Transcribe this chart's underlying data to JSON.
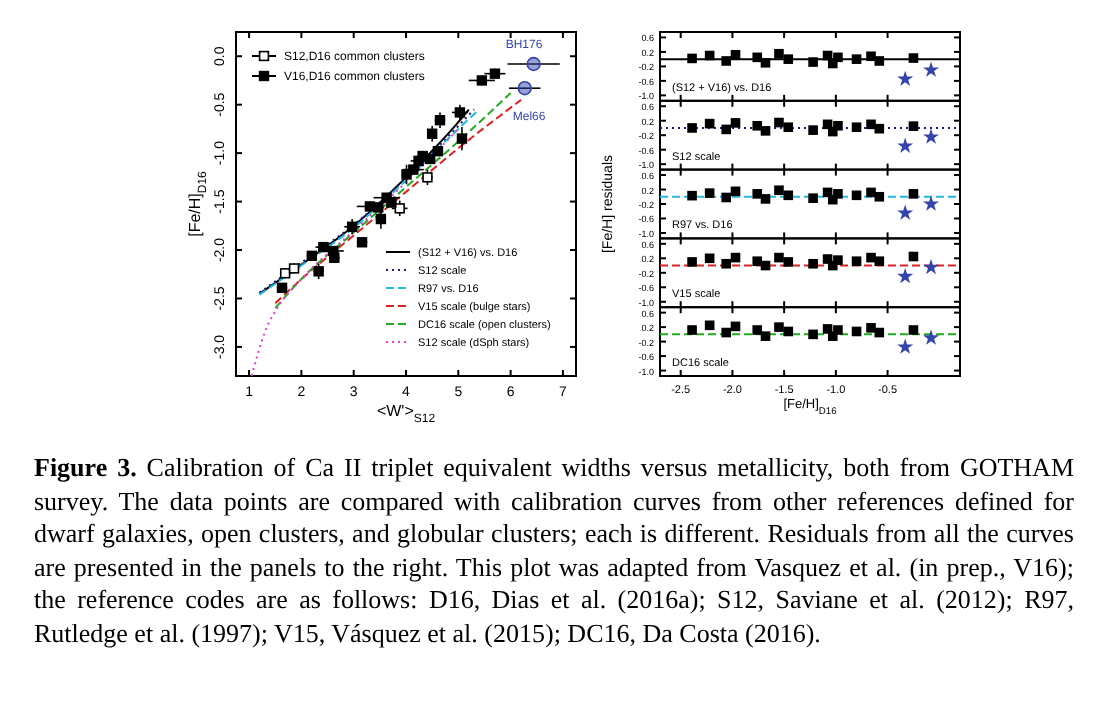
{
  "chart_data": [
    {
      "type": "scatter",
      "xlabel": "<W'>$_{S12}$",
      "ylabel": "[Fe/H]$_{D16}$",
      "xlim": [
        0.75,
        7.25
      ],
      "ylim": [
        -3.3,
        0.25
      ],
      "xticks": [
        1,
        2,
        3,
        4,
        5,
        6,
        7
      ],
      "yticks": [
        {
          "value": 0,
          "label": "0.0"
        },
        -0.5,
        {
          "value": -1,
          "label": "-1.0"
        },
        -1.5,
        {
          "value": -2,
          "label": "-2.0"
        },
        -2.5,
        {
          "value": -3,
          "label": "-3.0"
        }
      ],
      "legend": "left",
      "annotations": [
        {
          "text": "BH176",
          "x": 6.44,
          "y": -0.08
        },
        {
          "text": "Mel66",
          "x": 6.27,
          "y": -0.33
        },
        "Figure 3. Calibration of Ca II triplet equivalent widths versus metallicity, both from GOTHAM survey. The data points are compared with calibration curves from other references defined for dwarf galaxies, open clusters, and globular clusters; each is different.  Residuals from all the curves are presented in the panels to the right.  This plot was adapted from Vasquez et al. (in prep., V16); the reference codes are as follows: D16, Dias et al. (2016a); S12, Saviane et al. (2012); R97, Rutledge et al. (1997); V15, Vásquez et al. (2015); DC16, Da Costa (2016)."
      ],
      "series": [
        {
          "name": "S12,D16 common clusters",
          "type": "scatter",
          "color": "#ffffff",
          "marker": "square",
          "x": [
            1.69,
            1.86,
            3.88,
            4.41
          ],
          "values": [
            -2.24,
            -2.19,
            -1.57,
            -1.25
          ],
          "errors": [
            0.05,
            0.05,
            0.08,
            0.08
          ],
          "xerrors": [
            0.1,
            0.1,
            0.15,
            0.1
          ]
        },
        {
          "name": "V16,D16 common clusters",
          "type": "scatter",
          "color": "#000000",
          "marker": "square",
          "x": [
            1.63,
            2.2,
            2.42,
            2.33,
            2.61,
            2.63,
            2.97,
            3.16,
            3.31,
            3.47,
            3.52,
            3.63,
            3.72,
            4.01,
            4.14,
            4.24,
            4.32,
            4.46,
            4.61,
            4.5,
            4.65,
            5.03,
            5.07,
            5.45,
            5.7
          ],
          "values": [
            -2.39,
            -2.06,
            -1.97,
            -2.22,
            -2.01,
            -2.08,
            -1.76,
            -1.92,
            -1.55,
            -1.56,
            -1.68,
            -1.46,
            -1.51,
            -1.22,
            -1.17,
            -1.08,
            -1.03,
            -1.06,
            -0.98,
            -0.8,
            -0.66,
            -0.58,
            -0.85,
            -0.25,
            -0.18
          ],
          "errors": [
            0.05,
            0.05,
            0.05,
            0.08,
            0.05,
            0.05,
            0.08,
            0.05,
            0.05,
            0.05,
            0.1,
            0.05,
            0.05,
            0.1,
            0.05,
            0.1,
            0.05,
            0.05,
            0.05,
            0.08,
            0.08,
            0.08,
            0.12,
            0.05,
            0.05
          ],
          "xerrors": [
            0.1,
            0.1,
            0.15,
            0.1,
            0.2,
            0.1,
            0.15,
            0.1,
            0.25,
            0.1,
            0.1,
            0.25,
            0.1,
            0.1,
            0.2,
            0.15,
            0.1,
            0.1,
            0.1,
            0.05,
            0.1,
            0.15,
            0.05,
            0.25,
            0.2
          ]
        },
        {
          "type": "scatter",
          "color": "#3344aa",
          "marker": "circle",
          "x": [
            6.44,
            6.27
          ],
          "values": [
            -0.08,
            -0.33
          ],
          "xerrors": [
            0.5,
            0.3
          ]
        },
        {
          "name": "(S12 + V16) vs. D16",
          "type": "line",
          "color": "#000000",
          "line_style": "solid",
          "x": [
            1.2,
            2,
            3,
            4,
            5,
            5.2
          ],
          "values": [
            -2.45,
            -2.15,
            -1.75,
            -1.25,
            -0.68,
            -0.55
          ]
        },
        {
          "name": "S12 scale",
          "type": "line",
          "color": "#1a1a80",
          "line_style": "dotted",
          "x": [
            1.2,
            2,
            3,
            4,
            5,
            5.3
          ],
          "values": [
            -2.44,
            -2.13,
            -1.74,
            -1.26,
            -0.72,
            -0.55
          ]
        },
        {
          "name": "R97 vs. D16",
          "type": "line",
          "color": "#22bbdd",
          "line_style": "dashed",
          "x": [
            1.2,
            2,
            3,
            4,
            5,
            5.4
          ],
          "values": [
            -2.46,
            -2.16,
            -1.77,
            -1.28,
            -0.75,
            -0.55
          ]
        },
        {
          "name": "V15 scale (bulge stars)",
          "type": "line",
          "color": "#dd2222",
          "line_style": "dashed",
          "x": [
            1.5,
            2,
            3,
            4,
            5,
            6.2
          ],
          "values": [
            -2.55,
            -2.3,
            -1.85,
            -1.4,
            -0.95,
            -0.45
          ]
        },
        {
          "name": "DC16 scale (open clusters)",
          "type": "line",
          "color": "#22aa22",
          "line_style": "dashed",
          "x": [
            1.5,
            2,
            3,
            4,
            5,
            6
          ],
          "values": [
            -2.6,
            -2.3,
            -1.82,
            -1.35,
            -0.88,
            -0.38
          ]
        },
        {
          "name": "S12 scale (dSph stars)",
          "type": "line",
          "color": "#dd44cc",
          "line_style": "dotted",
          "x": [
            1.05,
            1.3,
            1.6,
            2,
            3,
            4,
            5
          ],
          "values": [
            -3.3,
            -2.85,
            -2.55,
            -2.3,
            -1.8,
            -1.3,
            -0.75
          ]
        }
      ]
    },
    {
      "type": "scatter",
      "xlim": [
        -2.7,
        0.2
      ],
      "ylim": [
        -1.15,
        0.75
      ],
      "yticks": [
        0.6,
        0.2,
        -0.2,
        -0.6,
        {
          "value": -1,
          "label": "-1.0"
        }
      ],
      "tick_labels": "y",
      "annotations": [
        "(S12 + V16) vs. D16"
      ],
      "ref_lines": [
        {
          "axis": "y",
          "value": 0,
          "color": "#000000",
          "line_style": "solid"
        }
      ],
      "series": [
        {
          "type": "scatter",
          "color": "#000000",
          "marker": "square",
          "x": [
            -2.39,
            -2.22,
            -2.06,
            -1.97,
            -1.76,
            -1.68,
            -1.55,
            -1.46,
            -1.22,
            -1.08,
            -1.03,
            -0.98,
            -0.8,
            -0.66,
            -0.58,
            -0.25
          ],
          "values": [
            0.02,
            0.1,
            -0.05,
            0.12,
            0.05,
            -0.1,
            0.15,
            0.0,
            -0.08,
            0.1,
            -0.12,
            0.05,
            0.0,
            0.08,
            -0.05,
            0.03
          ]
        },
        {
          "type": "scatter",
          "color": "#3344aa",
          "marker": "star",
          "x": [
            -0.33,
            -0.08
          ],
          "values": [
            -0.55,
            -0.3
          ]
        }
      ]
    },
    {
      "type": "scatter",
      "xlim": [
        -2.7,
        0.2
      ],
      "ylim": [
        -1.15,
        0.75
      ],
      "yticks": [
        0.6,
        0.2,
        -0.2,
        -0.6,
        {
          "value": -1,
          "label": "-1.0"
        }
      ],
      "tick_labels": "y",
      "annotations": [
        "S12 scale"
      ],
      "ref_lines": [
        {
          "axis": "y",
          "value": 0,
          "color": "#1a1a80",
          "line_style": "dotted"
        }
      ],
      "series": [
        {
          "type": "scatter",
          "color": "#000000",
          "marker": "square",
          "x": [
            -2.39,
            -2.22,
            -2.06,
            -1.97,
            -1.76,
            -1.68,
            -1.55,
            -1.46,
            -1.22,
            -1.08,
            -1.03,
            -0.98,
            -0.8,
            -0.66,
            -0.58,
            -0.25
          ],
          "values": [
            0.0,
            0.12,
            -0.04,
            0.14,
            0.06,
            -0.08,
            0.15,
            0.02,
            -0.06,
            0.1,
            -0.1,
            0.06,
            0.02,
            0.1,
            -0.02,
            0.05
          ]
        },
        {
          "type": "scatter",
          "color": "#3344aa",
          "marker": "star",
          "x": [
            -0.33,
            -0.08
          ],
          "values": [
            -0.5,
            -0.25
          ]
        }
      ]
    },
    {
      "type": "scatter",
      "xlim": [
        -2.7,
        0.2
      ],
      "ylim": [
        -1.15,
        0.75
      ],
      "yticks": [
        0.6,
        0.2,
        -0.2,
        -0.6,
        {
          "value": -1,
          "label": "-1.0"
        }
      ],
      "tick_labels": "y",
      "ylabel": "[Fe/H] residuals",
      "annotations": [
        "R97 vs. D16"
      ],
      "ref_lines": [
        {
          "axis": "y",
          "value": 0,
          "color": "#22bbdd",
          "line_style": "dashed"
        }
      ],
      "series": [
        {
          "type": "scatter",
          "color": "#000000",
          "marker": "square",
          "x": [
            -2.39,
            -2.22,
            -2.06,
            -1.97,
            -1.76,
            -1.68,
            -1.55,
            -1.46,
            -1.22,
            -1.08,
            -1.03,
            -0.98,
            -0.8,
            -0.66,
            -0.58,
            -0.25
          ],
          "values": [
            0.03,
            0.1,
            -0.02,
            0.15,
            0.08,
            -0.06,
            0.18,
            0.04,
            -0.04,
            0.12,
            -0.08,
            0.08,
            0.04,
            0.12,
            0.0,
            0.08
          ]
        },
        {
          "type": "scatter",
          "color": "#3344aa",
          "marker": "star",
          "x": [
            -0.33,
            -0.08
          ],
          "values": [
            -0.45,
            -0.2
          ]
        }
      ]
    },
    {
      "type": "scatter",
      "xlim": [
        -2.7,
        0.2
      ],
      "ylim": [
        -1.15,
        0.75
      ],
      "yticks": [
        0.6,
        0.2,
        -0.2,
        -0.6,
        {
          "value": -1,
          "label": "-1.0"
        }
      ],
      "tick_labels": "y",
      "annotations": [
        "V15 scale"
      ],
      "ref_lines": [
        {
          "axis": "y",
          "value": 0,
          "color": "#dd2222",
          "line_style": "dashed"
        }
      ],
      "series": [
        {
          "type": "scatter",
          "color": "#000000",
          "marker": "square",
          "x": [
            -2.39,
            -2.22,
            -2.06,
            -1.97,
            -1.76,
            -1.68,
            -1.55,
            -1.46,
            -1.22,
            -1.08,
            -1.03,
            -0.98,
            -0.8,
            -0.66,
            -0.58,
            -0.25
          ],
          "values": [
            0.1,
            0.2,
            0.05,
            0.22,
            0.12,
            0.0,
            0.22,
            0.1,
            0.05,
            0.18,
            0.0,
            0.15,
            0.12,
            0.22,
            0.12,
            0.25
          ]
        },
        {
          "type": "scatter",
          "color": "#3344aa",
          "marker": "star",
          "x": [
            -0.33,
            -0.08
          ],
          "values": [
            -0.3,
            -0.05
          ]
        }
      ]
    },
    {
      "type": "scatter",
      "xlim": [
        -2.7,
        0.2
      ],
      "ylim": [
        -1.15,
        0.75
      ],
      "xticks": [
        -2.5,
        {
          "value": -2,
          "label": "-2.0"
        },
        -1.5,
        {
          "value": -1,
          "label": "-1.0"
        },
        -0.5
      ],
      "yticks": [
        0.6,
        0.2,
        -0.2,
        -0.6,
        {
          "value": -1,
          "label": "-1.0"
        }
      ],
      "xlabel": "[Fe/H]$_{D16}$",
      "annotations": [
        "DC16 scale"
      ],
      "ref_lines": [
        {
          "axis": "y",
          "value": 0,
          "color": "#22aa22",
          "line_style": "dashed"
        }
      ],
      "series": [
        {
          "type": "scatter",
          "color": "#000000",
          "marker": "square",
          "x": [
            -2.39,
            -2.22,
            -2.06,
            -1.97,
            -1.76,
            -1.68,
            -1.55,
            -1.46,
            -1.22,
            -1.08,
            -1.03,
            -0.98,
            -0.8,
            -0.66,
            -0.58,
            -0.25
          ],
          "values": [
            0.12,
            0.25,
            0.05,
            0.22,
            0.12,
            -0.05,
            0.2,
            0.08,
            0.0,
            0.15,
            -0.05,
            0.12,
            0.08,
            0.18,
            0.05,
            0.12
          ]
        },
        {
          "type": "scatter",
          "color": "#3344aa",
          "marker": "star",
          "x": [
            -0.33,
            -0.08
          ],
          "values": [
            -0.35,
            -0.1
          ]
        }
      ]
    }
  ]
}
